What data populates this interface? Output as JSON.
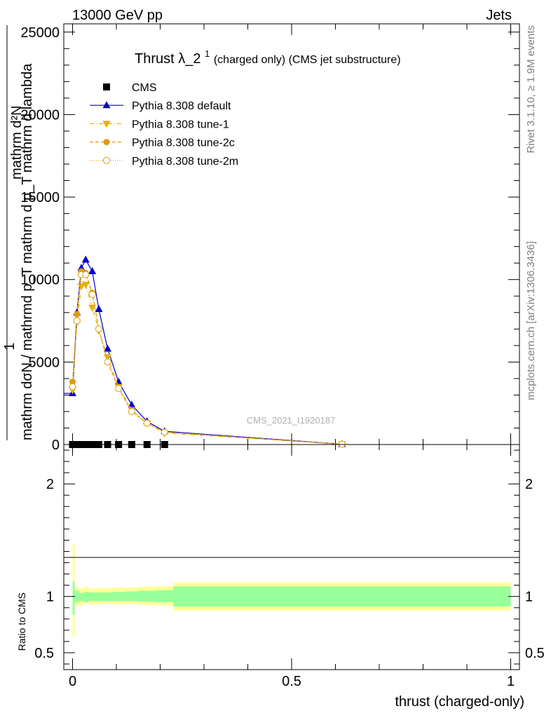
{
  "header": {
    "left": "13000 GeV pp",
    "right": "Jets"
  },
  "side_labels": {
    "rivet": "Rivet 3.1.10, ≥ 1.9M events",
    "mcplots": "mcplots.cern.ch [arXiv:1306.3436]"
  },
  "watermark": "CMS_2021_I1920187",
  "chart_data": [
    {
      "type": "line",
      "title_main": "Thrust λ_2",
      "title_sup": "1",
      "title_tail": " (charged only) (CMS jet substructure)",
      "ylabel_line1": "1",
      "ylabel_line2": "mathrm dσN / mathrmd p_T mathrm d p_T mathrm d lambda",
      "ylabel_line3": "mathrm d²N",
      "ylim": [
        0,
        25500
      ],
      "yticks": [
        {
          "value": 0,
          "label": "0"
        },
        {
          "value": 5000,
          "label": "5000"
        },
        {
          "value": 10000,
          "label": "10000"
        },
        {
          "value": 15000,
          "label": "15000"
        },
        {
          "value": 20000,
          "label": "20000"
        },
        {
          "value": 25000,
          "label": "25000"
        }
      ],
      "xlim": [
        -0.02,
        1.02
      ],
      "legend_placement": "top-left",
      "series": [
        {
          "name": "CMS",
          "color": "#000000",
          "marker": "square",
          "x": [
            0.0,
            0.01,
            0.02,
            0.03,
            0.045,
            0.06,
            0.08,
            0.105,
            0.135,
            0.17,
            0.21
          ],
          "y": [
            0,
            0,
            0,
            0,
            0,
            0,
            0,
            0,
            0,
            0,
            0
          ]
        },
        {
          "name": "Pythia 8.308 default",
          "color": "#0000cc",
          "marker": "triangle-up",
          "x": [
            0.0,
            0.01,
            0.02,
            0.03,
            0.045,
            0.06,
            0.08,
            0.105,
            0.135,
            0.17,
            0.21,
            0.615
          ],
          "y": [
            3100,
            8000,
            10700,
            11200,
            10500,
            8200,
            5800,
            3800,
            2400,
            1400,
            800,
            20
          ]
        },
        {
          "name": "Pythia 8.308 tune-1",
          "color": "#e8b000",
          "marker": "triangle-down",
          "x": [
            0.0,
            0.01,
            0.02,
            0.03,
            0.045,
            0.06,
            0.08,
            0.105,
            0.135,
            0.17,
            0.21,
            0.615
          ],
          "y": [
            3300,
            7400,
            9600,
            9700,
            8300,
            6900,
            5300,
            3500,
            2100,
            1300,
            700,
            20
          ]
        },
        {
          "name": "Pythia 8.308 tune-2c",
          "color": "#e09a10",
          "marker": "circle",
          "x": [
            0.0,
            0.01,
            0.02,
            0.03,
            0.045,
            0.06,
            0.08,
            0.105,
            0.135,
            0.17,
            0.21,
            0.615
          ],
          "y": [
            3800,
            7900,
            10500,
            10400,
            9200,
            7000,
            5000,
            3400,
            2000,
            1300,
            750,
            20
          ]
        },
        {
          "name": "Pythia 8.308 tune-2m",
          "color": "#e09a10",
          "marker": "circle-open",
          "x": [
            0.0,
            0.01,
            0.02,
            0.03,
            0.045,
            0.06,
            0.08,
            0.105,
            0.135,
            0.17,
            0.21,
            0.615
          ],
          "y": [
            3500,
            7500,
            10300,
            10300,
            9100,
            7000,
            5000,
            3400,
            2000,
            1300,
            750,
            20
          ]
        }
      ]
    },
    {
      "type": "area",
      "ylabel": "Ratio to CMS",
      "xlabel": "thrust (charged-only)",
      "xlim": [
        -0.02,
        1.02
      ],
      "ylim": [
        0.35,
        2.35
      ],
      "yticks": [
        {
          "value": 0.5,
          "label": "0.5"
        },
        {
          "value": 1,
          "label": "1"
        },
        {
          "value": 2,
          "label": "2"
        }
      ],
      "xticks": [
        {
          "value": 0,
          "label": "0"
        },
        {
          "value": 0.5,
          "label": "0.5"
        },
        {
          "value": 1,
          "label": "1"
        }
      ],
      "bands": {
        "bin_edges": [
          0.0,
          0.005,
          0.015,
          0.025,
          0.035,
          0.05,
          0.07,
          0.09,
          0.12,
          0.15,
          0.19,
          0.23,
          1.0
        ],
        "inner_color": "#99ff99",
        "outer_color": "#ffff99",
        "inner_lo": [
          0.84,
          0.95,
          0.96,
          0.95,
          0.96,
          0.96,
          0.96,
          0.96,
          0.96,
          0.955,
          0.95,
          0.91
        ],
        "inner_hi": [
          1.13,
          1.05,
          1.03,
          1.04,
          1.035,
          1.035,
          1.035,
          1.04,
          1.045,
          1.05,
          1.055,
          1.09
        ],
        "outer_lo": [
          0.64,
          0.92,
          0.92,
          0.94,
          0.93,
          0.93,
          0.935,
          0.93,
          0.935,
          0.925,
          0.92,
          0.875
        ],
        "outer_hi": [
          1.47,
          1.08,
          1.07,
          1.09,
          1.07,
          1.075,
          1.075,
          1.08,
          1.08,
          1.09,
          1.09,
          1.125
        ]
      }
    }
  ]
}
